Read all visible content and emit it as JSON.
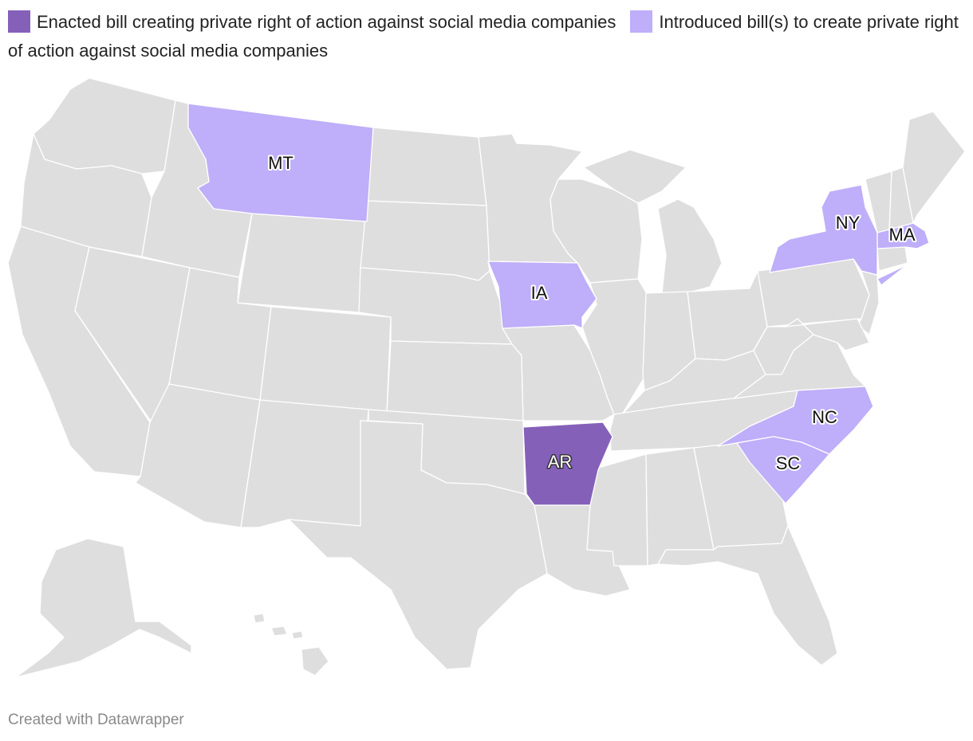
{
  "legend": [
    {
      "label": "Enacted bill creating private right of action against social media companies",
      "color": "#8560b9"
    },
    {
      "label": "Introduced bill(s) to create private right of action against social media companies",
      "color": "#bfaef9"
    }
  ],
  "footer": {
    "credit": "Created with Datawrapper"
  },
  "colors": {
    "default": "#dedede",
    "enacted": "#8560b9",
    "introduced": "#bfaef9",
    "border": "#ffffff"
  },
  "states": [
    {
      "abbr": "AR",
      "status": "enacted"
    },
    {
      "abbr": "MT",
      "status": "introduced"
    },
    {
      "abbr": "IA",
      "status": "introduced"
    },
    {
      "abbr": "NY",
      "status": "introduced"
    },
    {
      "abbr": "MA",
      "status": "introduced"
    },
    {
      "abbr": "NC",
      "status": "introduced"
    },
    {
      "abbr": "SC",
      "status": "introduced"
    }
  ]
}
